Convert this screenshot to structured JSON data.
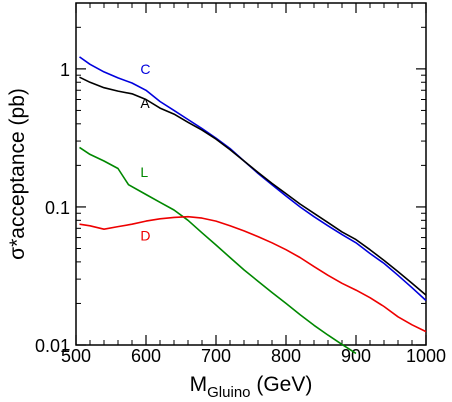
{
  "chart_data": {
    "type": "line",
    "xlabel_main": "M",
    "xlabel_sub": "Gluino",
    "xlabel_unit": "(GeV)",
    "ylabel": "σ*acceptance  (pb)",
    "xlim": [
      500,
      1000
    ],
    "ylim": [
      0.01,
      3
    ],
    "yscale": "log",
    "grid": false,
    "x_ticks": [
      500,
      600,
      700,
      800,
      900,
      1000
    ],
    "x_tick_labels": [
      "500",
      "600",
      "700",
      "800",
      "900",
      "1000"
    ],
    "y_ticks": [
      0.01,
      0.1,
      1
    ],
    "y_tick_labels": [
      "0.01",
      "0.1",
      "1"
    ],
    "series": [
      {
        "name": "C",
        "color": "#0000dd",
        "label_x": 592,
        "label_y": 0.92,
        "points": [
          [
            505,
            1.22
          ],
          [
            520,
            1.08
          ],
          [
            540,
            0.95
          ],
          [
            560,
            0.86
          ],
          [
            580,
            0.79
          ],
          [
            600,
            0.7
          ],
          [
            620,
            0.58
          ],
          [
            640,
            0.5
          ],
          [
            660,
            0.43
          ],
          [
            680,
            0.37
          ],
          [
            700,
            0.315
          ],
          [
            720,
            0.265
          ],
          [
            740,
            0.215
          ],
          [
            760,
            0.175
          ],
          [
            780,
            0.145
          ],
          [
            800,
            0.12
          ],
          [
            820,
            0.1
          ],
          [
            840,
            0.085
          ],
          [
            860,
            0.073
          ],
          [
            880,
            0.063
          ],
          [
            900,
            0.055
          ],
          [
            920,
            0.046
          ],
          [
            940,
            0.039
          ],
          [
            960,
            0.032
          ],
          [
            980,
            0.026
          ],
          [
            1000,
            0.021
          ]
        ]
      },
      {
        "name": "A",
        "color": "#000000",
        "label_x": 592,
        "label_y": 0.52,
        "points": [
          [
            505,
            0.87
          ],
          [
            520,
            0.8
          ],
          [
            540,
            0.73
          ],
          [
            560,
            0.69
          ],
          [
            580,
            0.66
          ],
          [
            600,
            0.6
          ],
          [
            620,
            0.52
          ],
          [
            640,
            0.47
          ],
          [
            660,
            0.41
          ],
          [
            680,
            0.36
          ],
          [
            700,
            0.31
          ],
          [
            720,
            0.26
          ],
          [
            740,
            0.215
          ],
          [
            760,
            0.178
          ],
          [
            780,
            0.148
          ],
          [
            800,
            0.125
          ],
          [
            820,
            0.105
          ],
          [
            840,
            0.09
          ],
          [
            860,
            0.077
          ],
          [
            880,
            0.066
          ],
          [
            900,
            0.058
          ],
          [
            920,
            0.049
          ],
          [
            940,
            0.041
          ],
          [
            960,
            0.034
          ],
          [
            980,
            0.028
          ],
          [
            1000,
            0.023
          ]
        ]
      },
      {
        "name": "L",
        "color": "#008800",
        "label_x": 592,
        "label_y": 0.165,
        "points": [
          [
            505,
            0.27
          ],
          [
            520,
            0.24
          ],
          [
            540,
            0.215
          ],
          [
            560,
            0.19
          ],
          [
            575,
            0.145
          ],
          [
            600,
            0.123
          ],
          [
            620,
            0.108
          ],
          [
            640,
            0.095
          ],
          [
            660,
            0.08
          ],
          [
            680,
            0.065
          ],
          [
            700,
            0.053
          ],
          [
            720,
            0.043
          ],
          [
            740,
            0.035
          ],
          [
            760,
            0.029
          ],
          [
            780,
            0.024
          ],
          [
            800,
            0.02
          ],
          [
            820,
            0.0166
          ],
          [
            840,
            0.0139
          ],
          [
            860,
            0.0118
          ],
          [
            880,
            0.0101
          ],
          [
            900,
            0.0087
          ]
        ]
      },
      {
        "name": "D",
        "color": "#ee0000",
        "label_x": 592,
        "label_y": 0.057,
        "points": [
          [
            505,
            0.075
          ],
          [
            520,
            0.073
          ],
          [
            540,
            0.069
          ],
          [
            560,
            0.072
          ],
          [
            580,
            0.075
          ],
          [
            600,
            0.079
          ],
          [
            620,
            0.082
          ],
          [
            640,
            0.084
          ],
          [
            660,
            0.085
          ],
          [
            680,
            0.083
          ],
          [
            700,
            0.079
          ],
          [
            720,
            0.073
          ],
          [
            740,
            0.067
          ],
          [
            760,
            0.061
          ],
          [
            780,
            0.055
          ],
          [
            800,
            0.049
          ],
          [
            820,
            0.043
          ],
          [
            840,
            0.037
          ],
          [
            860,
            0.032
          ],
          [
            880,
            0.028
          ],
          [
            900,
            0.025
          ],
          [
            920,
            0.022
          ],
          [
            940,
            0.019
          ],
          [
            960,
            0.016
          ],
          [
            980,
            0.014
          ],
          [
            1000,
            0.0125
          ]
        ]
      }
    ]
  }
}
